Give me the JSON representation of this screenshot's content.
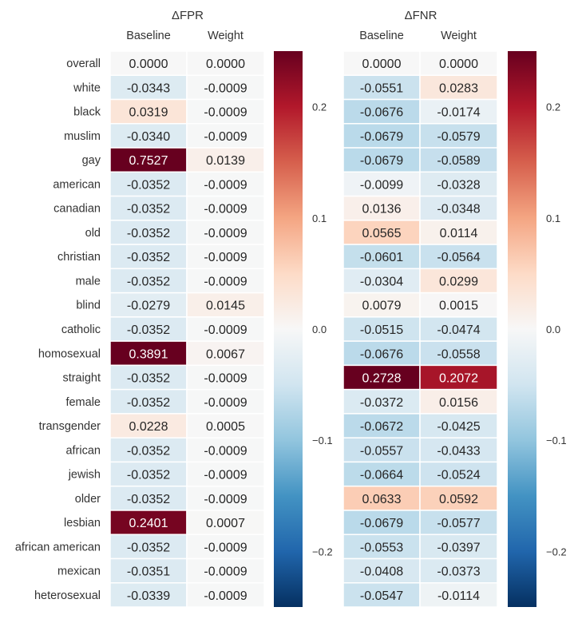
{
  "chart_data": [
    {
      "type": "heatmap",
      "title": "ΔFPR",
      "columns": [
        "Baseline",
        "Weight"
      ],
      "rows": [
        "overall",
        "white",
        "black",
        "muslim",
        "gay",
        "american",
        "canadian",
        "old",
        "christian",
        "male",
        "blind",
        "catholic",
        "homosexual",
        "straight",
        "female",
        "transgender",
        "african",
        "jewish",
        "older",
        "lesbian",
        "african american",
        "mexican",
        "heterosexual"
      ],
      "values": [
        [
          "0.0000",
          "0.0000"
        ],
        [
          "-0.0343",
          "-0.0009"
        ],
        [
          "0.0319",
          "-0.0009"
        ],
        [
          "-0.0340",
          "-0.0009"
        ],
        [
          "0.7527",
          "0.0139"
        ],
        [
          "-0.0352",
          "-0.0009"
        ],
        [
          "-0.0352",
          "-0.0009"
        ],
        [
          "-0.0352",
          "-0.0009"
        ],
        [
          "-0.0352",
          "-0.0009"
        ],
        [
          "-0.0352",
          "-0.0009"
        ],
        [
          "-0.0279",
          "0.0145"
        ],
        [
          "-0.0352",
          "-0.0009"
        ],
        [
          "0.3891",
          "0.0067"
        ],
        [
          "-0.0352",
          "-0.0009"
        ],
        [
          "-0.0352",
          "-0.0009"
        ],
        [
          "0.0228",
          "0.0005"
        ],
        [
          "-0.0352",
          "-0.0009"
        ],
        [
          "-0.0352",
          "-0.0009"
        ],
        [
          "-0.0352",
          "-0.0009"
        ],
        [
          "0.2401",
          "0.0007"
        ],
        [
          "-0.0352",
          "-0.0009"
        ],
        [
          "-0.0351",
          "-0.0009"
        ],
        [
          "-0.0339",
          "-0.0009"
        ]
      ],
      "colormap": "RdBu_r",
      "vmin": -0.25,
      "vmax": 0.25,
      "colorbar_ticks": [
        "0.2",
        "0.1",
        "0.0",
        "−0.1",
        "−0.2"
      ],
      "colorbar_tick_values": [
        0.2,
        0.1,
        0.0,
        -0.1,
        -0.2
      ]
    },
    {
      "type": "heatmap",
      "title": "ΔFNR",
      "columns": [
        "Baseline",
        "Weight"
      ],
      "rows": [
        "overall",
        "white",
        "black",
        "muslim",
        "gay",
        "american",
        "canadian",
        "old",
        "christian",
        "male",
        "blind",
        "catholic",
        "homosexual",
        "straight",
        "female",
        "transgender",
        "african",
        "jewish",
        "older",
        "lesbian",
        "african american",
        "mexican",
        "heterosexual"
      ],
      "values": [
        [
          "0.0000",
          "0.0000"
        ],
        [
          "-0.0551",
          "0.0283"
        ],
        [
          "-0.0676",
          "-0.0174"
        ],
        [
          "-0.0679",
          "-0.0579"
        ],
        [
          "-0.0679",
          "-0.0589"
        ],
        [
          "-0.0099",
          "-0.0328"
        ],
        [
          "0.0136",
          "-0.0348"
        ],
        [
          "0.0565",
          "0.0114"
        ],
        [
          "-0.0601",
          "-0.0564"
        ],
        [
          "-0.0304",
          "0.0299"
        ],
        [
          "0.0079",
          "0.0015"
        ],
        [
          "-0.0515",
          "-0.0474"
        ],
        [
          "-0.0676",
          "-0.0558"
        ],
        [
          "0.2728",
          "0.2072"
        ],
        [
          "-0.0372",
          "0.0156"
        ],
        [
          "-0.0672",
          "-0.0425"
        ],
        [
          "-0.0557",
          "-0.0433"
        ],
        [
          "-0.0664",
          "-0.0524"
        ],
        [
          "0.0633",
          "0.0592"
        ],
        [
          "-0.0679",
          "-0.0577"
        ],
        [
          "-0.0553",
          "-0.0397"
        ],
        [
          "-0.0408",
          "-0.0373"
        ],
        [
          "-0.0547",
          "-0.0114"
        ]
      ],
      "colormap": "RdBu_r",
      "vmin": -0.25,
      "vmax": 0.25,
      "colorbar_ticks": [
        "0.2",
        "0.1",
        "0.0",
        "−0.1",
        "−0.2"
      ],
      "colorbar_tick_values": [
        0.2,
        0.1,
        0.0,
        -0.1,
        -0.2
      ]
    }
  ]
}
